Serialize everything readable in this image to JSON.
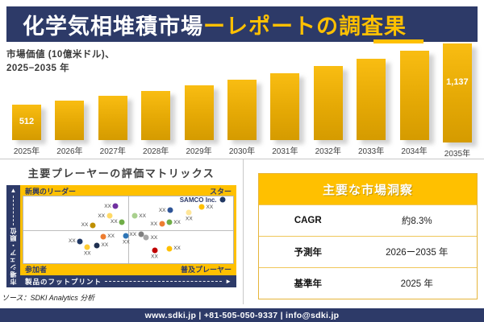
{
  "header": {
    "title_main": "化学気相堆積市場",
    "title_accent": "ーレポートの調査果"
  },
  "chart_caption": {
    "line1": "市場価値 (10億米ドル)、",
    "line2": "2025−2035 年"
  },
  "chart_data": [
    {
      "type": "bar",
      "title": "市場価値 (10億米ドル)、2025−2035 年",
      "categories": [
        "2025年",
        "2026年",
        "2027年",
        "2028年",
        "2029年",
        "2030年",
        "2031年",
        "2032年",
        "2033年",
        "2034年",
        "2035年"
      ],
      "values": [
        512,
        554,
        600,
        650,
        704,
        763,
        826,
        894,
        969,
        1049,
        1137
      ],
      "bar_value_labels": [
        "512",
        "",
        "",
        "",
        "",
        "",
        "",
        "",
        "",
        "",
        "1,137"
      ],
      "xlabel": "",
      "ylabel": "市場価値 (10億米ドル)",
      "ylim": [
        0,
        1200
      ],
      "grid": false,
      "legend": false,
      "bar_color_top": "#F9BD12",
      "bar_color_bottom": "#D59B00"
    },
    {
      "type": "scatter",
      "title": "主要プレーヤーの評価マトリックス",
      "xlabel": "製品のフットプリント",
      "ylabel": "市場シェア・順位",
      "quadrants": {
        "top_left": "新興のリーダー",
        "top_right": "スター",
        "bottom_left": "参加者",
        "bottom_right": "普及プレーヤー"
      },
      "points": [
        {
          "x": 44,
          "y": 15,
          "color": "#7030A0",
          "label": "XX",
          "label_pos": "left"
        },
        {
          "x": 41,
          "y": 29,
          "color": "#FFD966",
          "label": "XX",
          "label_pos": "left"
        },
        {
          "x": 47,
          "y": 38,
          "color": "#70AD47",
          "label": "XX",
          "label_pos": "left"
        },
        {
          "x": 33,
          "y": 43,
          "color": "#BF8F00",
          "label": "XX",
          "label_pos": "left"
        },
        {
          "x": 38,
          "y": 60,
          "color": "#ED7D31",
          "label": "XX",
          "label_pos": "right"
        },
        {
          "x": 49,
          "y": 59,
          "color": "#2E75B6",
          "label": "XX",
          "label_pos": "below"
        },
        {
          "x": 27,
          "y": 67,
          "color": "#203864",
          "label": "XX",
          "label_pos": "left"
        },
        {
          "x": 35,
          "y": 73,
          "color": "#1F3050",
          "label": "XX",
          "label_pos": "right"
        },
        {
          "x": 30.5,
          "y": 76,
          "color": "#FFCC33",
          "label": "XX",
          "label_pos": "below"
        },
        {
          "x": 95,
          "y": 5,
          "color": "#203864",
          "label": "SAMCO Inc.",
          "label_pos": "left",
          "emphasis": true
        },
        {
          "x": 53,
          "y": 29,
          "color": "#A9D08E",
          "label": "XX",
          "label_pos": "right"
        },
        {
          "x": 70,
          "y": 21,
          "color": "#2F5597",
          "label": "XX",
          "label_pos": "left"
        },
        {
          "x": 85,
          "y": 16,
          "color": "#FFC000",
          "label": "XX",
          "label_pos": "right"
        },
        {
          "x": 79,
          "y": 24,
          "color": "#FFE699",
          "label": "XX",
          "label_pos": "below"
        },
        {
          "x": 66,
          "y": 41,
          "color": "#ED7D31",
          "label": "XX",
          "label_pos": "left"
        },
        {
          "x": 69.5,
          "y": 39,
          "color": "#70AD47",
          "label": "XX",
          "label_pos": "right"
        },
        {
          "x": 56,
          "y": 57,
          "color": "#7F7F7F",
          "label": "XX",
          "label_pos": "left"
        },
        {
          "x": 58.5,
          "y": 62,
          "color": "#A6A6A6",
          "label": "XX",
          "label_pos": "right"
        },
        {
          "x": 62.5,
          "y": 81,
          "color": "#C00000",
          "label": "XX",
          "label_pos": "below"
        },
        {
          "x": 69.5,
          "y": 78,
          "color": "#FFC000",
          "label": "XX",
          "label_pos": "right"
        }
      ],
      "legend_position": "none"
    }
  ],
  "insights": {
    "title": "主要な市場洞察",
    "rows": [
      {
        "label": "CAGR",
        "value": "約8.3%"
      },
      {
        "label": "予測年",
        "value": "2026ー2035 年"
      },
      {
        "label": "基準年",
        "value": "2025 年"
      }
    ]
  },
  "source": "ソース：SDKI Analytics 分析",
  "footer": "www.sdki.jp | +81-505-050-9337 | info@sdki.jp",
  "colors": {
    "navy": "#2D3A68",
    "gold": "#FFC000",
    "bar_gradient_top": "#F9BD12",
    "bar_gradient_bottom": "#D59B00"
  }
}
